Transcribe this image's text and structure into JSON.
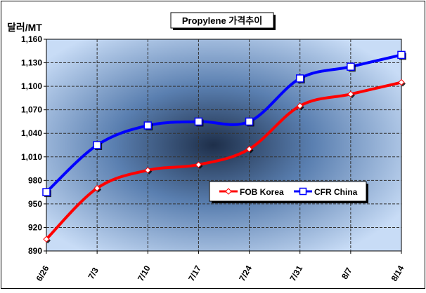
{
  "chart_data": {
    "type": "line",
    "title": "Propylene 가격추이",
    "ylabel": "달러/MT",
    "xlabel": "",
    "categories": [
      "6/26",
      "7/3",
      "7/10",
      "7/17",
      "7/24",
      "7/31",
      "8/7",
      "8/14"
    ],
    "ylim": [
      890,
      1160
    ],
    "yticks": [
      890,
      920,
      950,
      980,
      1010,
      1040,
      1070,
      1100,
      1130,
      1160
    ],
    "ytick_labels": [
      "890",
      "920",
      "950",
      "980",
      "1,010",
      "1,040",
      "1,070",
      "1,100",
      "1,130",
      "1,160"
    ],
    "grid": true,
    "legend_position": "right, lower-middle",
    "series": [
      {
        "name": "FOB Korea",
        "color": "#ff0000",
        "marker": "diamond",
        "values": [
          905,
          970,
          993,
          1000,
          1020,
          1075,
          1090,
          1105
        ]
      },
      {
        "name": "CFR China",
        "color": "#0000ff",
        "marker": "square",
        "values": [
          965,
          1025,
          1050,
          1055,
          1055,
          1110,
          1125,
          1140
        ]
      }
    ],
    "colors": {
      "plot_edge": "#c8dcf6",
      "plot_center": "#1e2f4a",
      "grid": "#333333"
    }
  }
}
